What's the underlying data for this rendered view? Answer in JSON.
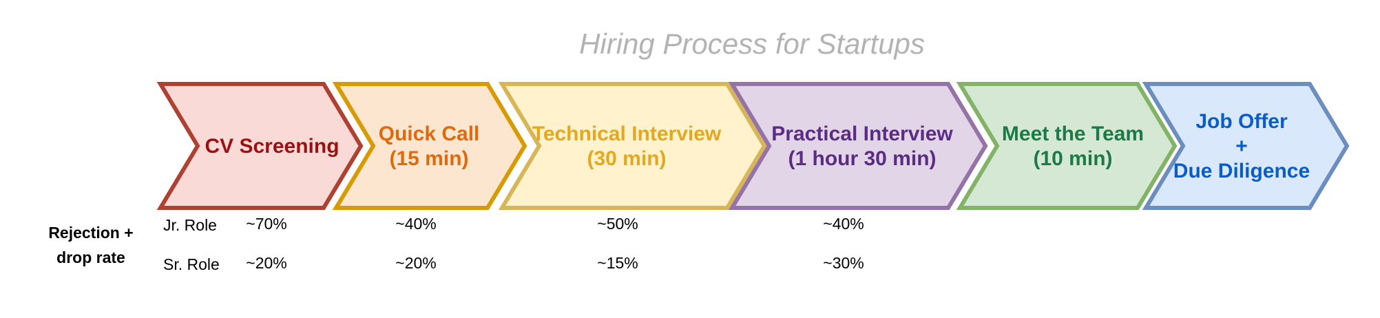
{
  "title": "Hiring Process for Startups",
  "colors": {
    "title": "#b3b3b3",
    "text": "#000000"
  },
  "stages": [
    {
      "lines": [
        "CV Screening"
      ],
      "fill": "#f9dad7",
      "stroke": "#ae4132",
      "text_color": "#9b1010"
    },
    {
      "lines": [
        "Quick Call",
        "(15 min)"
      ],
      "fill": "#fde6d0",
      "stroke": "#d79b00",
      "text_color": "#e06a0b"
    },
    {
      "lines": [
        "Technical Interview",
        "(30 min)"
      ],
      "fill": "#fff2cc",
      "stroke": "#d6b656",
      "text_color": "#e3a81e"
    },
    {
      "lines": [
        "Practical Interview",
        "(1 hour 30 min)"
      ],
      "fill": "#e1d5e7",
      "stroke": "#9673a6",
      "text_color": "#5b2c83"
    },
    {
      "lines": [
        "Meet the Team",
        "(10 min)"
      ],
      "fill": "#d5e8d4",
      "stroke": "#82b366",
      "text_color": "#1d7a48"
    },
    {
      "lines": [
        "Job Offer",
        "+",
        "Due Diligence"
      ],
      "fill": "#dae8fc",
      "stroke": "#6c8ebf",
      "text_color": "#0a5cc7"
    }
  ],
  "rejection": {
    "label_lines": [
      "Rejection +",
      "drop rate"
    ],
    "roles": [
      {
        "name": "Jr. Role",
        "rates": [
          "~70%",
          "~40%",
          "~50%",
          "~40%"
        ]
      },
      {
        "name": "Sr. Role",
        "rates": [
          "~20%",
          "~20%",
          "~15%",
          "~30%"
        ]
      }
    ]
  }
}
